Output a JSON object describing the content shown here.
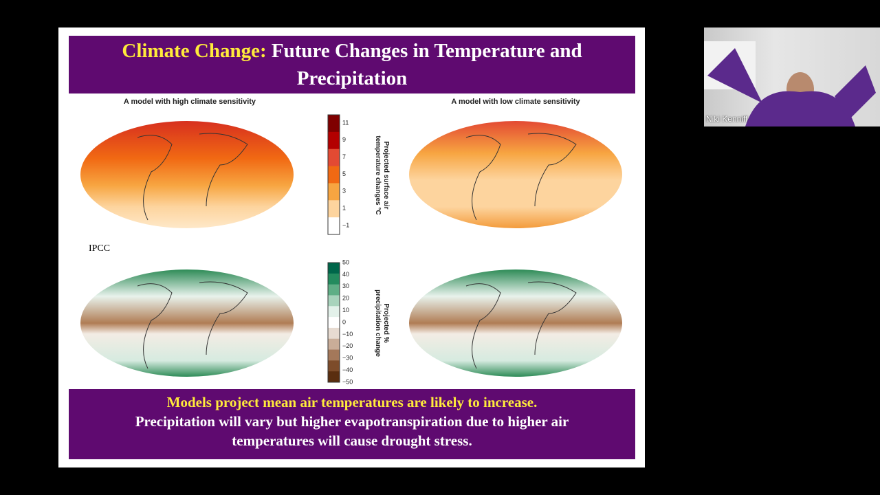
{
  "slide": {
    "title_highlight": "Climate Change:",
    "title_rest": "Future Changes in Temperature and Precipitation",
    "panel_left": "A model with high climate sensitivity",
    "panel_right": "A model with low climate sensitivity",
    "source": "IPCC",
    "temperature_scale": {
      "label": "Projected surface air temperature changes °C",
      "ticks": [
        "11",
        "9",
        "7",
        "5",
        "3",
        "1",
        "−1"
      ]
    },
    "precipitation_scale": {
      "label": "Projected % precipitation change",
      "ticks": [
        "50",
        "40",
        "30",
        "20",
        "10",
        "0",
        "−10",
        "−20",
        "−30",
        "−40",
        "−50"
      ]
    },
    "summary_highlight": "Models project mean air temperatures are likely to increase.",
    "summary_rest": "Precipitation will vary but higher evapotranspiration due to higher air temperatures will cause drought stress."
  },
  "video_tile": {
    "participant": "Niki Kenniff"
  }
}
